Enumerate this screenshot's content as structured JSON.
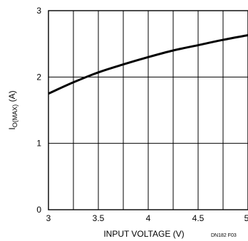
{
  "chart_data": {
    "type": "line",
    "title": "",
    "xlabel": "INPUT VOLTAGE (V)",
    "ylabel_main": "I",
    "ylabel_sub": "O(MAX)",
    "ylabel_unit": " (A)",
    "xlim": [
      3,
      5
    ],
    "ylim": [
      0,
      3
    ],
    "x_ticks": [
      3,
      3.25,
      3.5,
      3.75,
      4,
      4.25,
      4.5,
      4.75,
      5
    ],
    "x_tick_labels": [
      "3",
      "3.5",
      "4",
      "4.5",
      "5"
    ],
    "x_tick_label_values": [
      3,
      3.5,
      4,
      4.5,
      5
    ],
    "y_ticks": [
      0,
      1,
      2,
      3
    ],
    "y_tick_labels": [
      "0",
      "1",
      "2",
      "3"
    ],
    "grid": true,
    "series": [
      {
        "x": [
          3,
          3.25,
          3.5,
          3.75,
          4,
          4.25,
          4.5,
          4.75,
          5
        ],
        "y": [
          1.75,
          1.92,
          2.07,
          2.19,
          2.3,
          2.4,
          2.48,
          2.56,
          2.63
        ]
      }
    ],
    "figure_id": "DN182 F03",
    "colors": {
      "line": "#000000",
      "grid": "#000000",
      "background": "#ffffff"
    }
  }
}
